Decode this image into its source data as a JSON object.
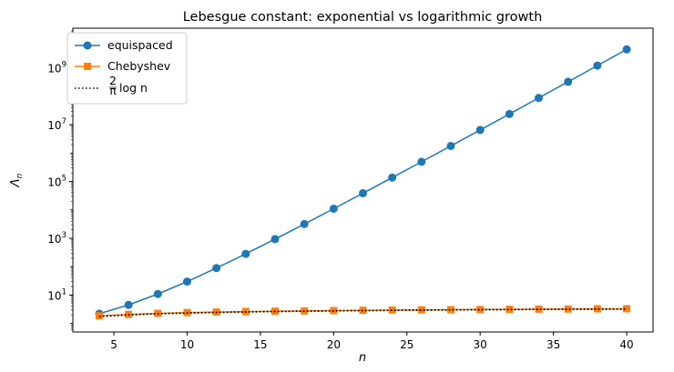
{
  "chart_data": {
    "type": "line",
    "title": "Lebesgue constant: exponential vs logarithmic growth",
    "xlabel": "n",
    "ylabel": "Λn",
    "ylabel_main": "Λ",
    "ylabel_sub": "n",
    "yscale": "log",
    "xlim": [
      2.2,
      41.8
    ],
    "ylim_log10": [
      -0.3,
      10.4
    ],
    "x_ticks": [
      5,
      10,
      15,
      20,
      25,
      30,
      35,
      40
    ],
    "y_ticks": [
      {
        "exp": 1,
        "base": "10",
        "sup": "1"
      },
      {
        "exp": 3,
        "base": "10",
        "sup": "3"
      },
      {
        "exp": 5,
        "base": "10",
        "sup": "5"
      },
      {
        "exp": 7,
        "base": "10",
        "sup": "7"
      },
      {
        "exp": 9,
        "base": "10",
        "sup": "9"
      }
    ],
    "grid": false,
    "legend_position": "top-left",
    "x": [
      4,
      6,
      8,
      10,
      12,
      14,
      16,
      18,
      20,
      22,
      24,
      26,
      28,
      30,
      32,
      34,
      36,
      38,
      40
    ],
    "series": [
      {
        "name": "equispaced",
        "color": "#1f77b4",
        "marker": "circle",
        "linestyle": "solid",
        "values": [
          2.2,
          4.5,
          10.9,
          29.9,
          89.3,
          283,
          934,
          3170,
          11000,
          38700,
          138000,
          495000,
          1790000,
          6520000,
          23900000,
          88000000,
          325000000,
          1210000000,
          4500000000
        ]
      },
      {
        "name": "Chebyshev",
        "color": "#ff7f0e",
        "marker": "square",
        "linestyle": "solid",
        "values": [
          1.85,
          2.08,
          2.27,
          2.42,
          2.52,
          2.62,
          2.7,
          2.77,
          2.84,
          2.9,
          2.96,
          3.01,
          3.06,
          3.11,
          3.15,
          3.19,
          3.23,
          3.27,
          3.3
        ]
      },
      {
        "name": "2/π log n",
        "legend_frac_num": "2",
        "legend_frac_den": "π",
        "legend_text": "log n",
        "color": "#000000",
        "marker": "none",
        "linestyle": "dotted",
        "values": [
          1.76,
          2.01,
          2.19,
          2.33,
          2.45,
          2.55,
          2.64,
          2.71,
          2.78,
          2.84,
          2.9,
          2.95,
          3.0,
          3.05,
          3.09,
          3.13,
          3.16,
          3.2,
          3.23
        ]
      }
    ]
  }
}
